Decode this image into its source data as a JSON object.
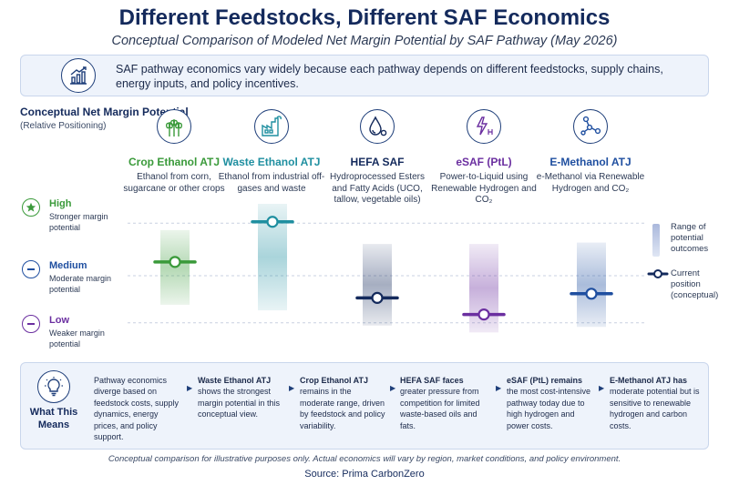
{
  "header": {
    "title": "Different Feedstocks, Different SAF Economics",
    "subtitle": "Conceptual Comparison of Modeled Net Margin Potential by SAF Pathway (May 2026)"
  },
  "intro": {
    "icon": "chart-growth-icon",
    "text": "SAF pathway economics vary widely because each pathway depends on different feedstocks, supply chains, energy inputs, and policy incentives."
  },
  "axis": {
    "title": "Conceptual Net Margin Potential",
    "subtitle": "(Relative Positioning)",
    "levels": [
      {
        "name": "High",
        "desc": "Stronger margin potential",
        "icon": "star-icon",
        "color": "#3a9a3a"
      },
      {
        "name": "Medium",
        "desc": "Moderate margin potential",
        "icon": "minus-icon",
        "color": "#1f4fa0"
      },
      {
        "name": "Low",
        "desc": "Weaker margin potential",
        "icon": "minus-icon",
        "color": "#6b2fa0"
      }
    ]
  },
  "pathways": [
    {
      "name": "Crop Ethanol ATJ",
      "desc": "Ethanol from corn, sugarcane or other crops",
      "icon": "wheat-icon",
      "color": "#3a9a3a"
    },
    {
      "name": "Waste Ethanol ATJ",
      "desc": "Ethanol from industrial off-gases and waste",
      "icon": "factory-icon",
      "color": "#1f8fa0"
    },
    {
      "name": "HEFA SAF",
      "desc": "Hydroprocessed Esters and Fatty Acids (UCO, tallow, vegetable oils)",
      "icon": "oil-drop-icon",
      "color": "#142a5c"
    },
    {
      "name": "eSAF (PtL)",
      "desc": "Power-to-Liquid using Renewable Hydrogen and CO₂",
      "icon": "power-hydrogen-icon",
      "color": "#6b2fa0"
    },
    {
      "name": "E-Methanol ATJ",
      "desc": "e-Methanol via Renewable Hydrogen and CO₂",
      "icon": "molecule-icon",
      "color": "#1f4fa0"
    }
  ],
  "chart_data": {
    "type": "scatter",
    "title": "Conceptual Net Margin Potential",
    "ylabel": "(Relative Positioning)",
    "categories": [
      "Crop Ethanol ATJ",
      "Waste Ethanol ATJ",
      "HEFA SAF",
      "eSAF (PtL)",
      "E-Methanol ATJ"
    ],
    "y_scale": [
      "Low",
      "Medium",
      "High"
    ],
    "ylim": [
      0,
      1
    ],
    "series": [
      {
        "name": "Current position (conceptual)",
        "values": [
          0.58,
          0.87,
          0.32,
          0.2,
          0.35
        ]
      },
      {
        "name": "Range of potential outcomes",
        "ranges": [
          [
            0.27,
            0.81
          ],
          [
            0.23,
            1.0
          ],
          [
            0.12,
            0.71
          ],
          [
            0.07,
            0.71
          ],
          [
            0.11,
            0.72
          ]
        ]
      }
    ],
    "legend": [
      "Range of potential outcomes",
      "Current position (conceptual)"
    ],
    "legend_position": "right"
  },
  "legend": {
    "range_label": "Range of potential outcomes",
    "current_label": "Current position (conceptual)"
  },
  "means": {
    "label": "What This Means",
    "icon": "lightbulb-icon",
    "items": [
      {
        "bold": "",
        "text": "Pathway economics diverge based on feedstock costs, supply dynamics, energy prices, and policy support.",
        "leadbold": "Pathway economics"
      },
      {
        "bold": "Waste Ethanol ATJ",
        "text": "shows the strongest margin potential in this conceptual view."
      },
      {
        "bold": "Crop Ethanol ATJ",
        "text": "remains in the moderate range, driven by feedstock and policy variability."
      },
      {
        "bold": "HEFA SAF faces",
        "text": "greater pressure from competition for limited waste-based oils and fats."
      },
      {
        "bold": "eSAF (PtL) remains",
        "text": "the most cost-intensive pathway today due to high hydrogen and power costs."
      },
      {
        "bold": "E-Methanol ATJ has",
        "text": "moderate potential but is sensitive to renewable hydrogen and carbon costs."
      }
    ]
  },
  "footer": {
    "note": "Conceptual comparison for illustrative purposes only. Actual economics will vary by region, market conditions, and policy environment.",
    "source": "Source: Prima CarbonZero"
  }
}
